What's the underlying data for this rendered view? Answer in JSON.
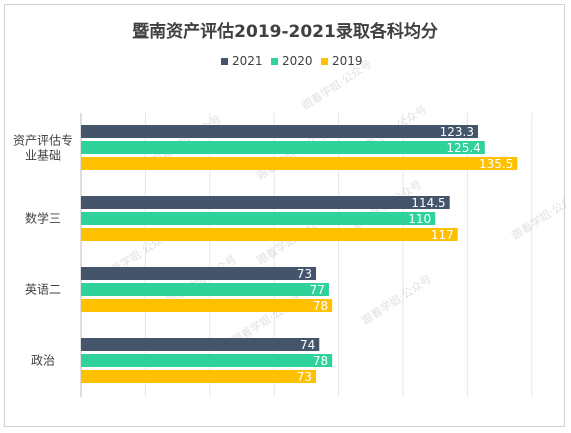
{
  "chart_data": {
    "type": "bar",
    "orientation": "horizontal",
    "title": "暨南资产评估2019-2021录取各科均分",
    "categories": [
      "资产评估专业基础",
      "数学三",
      "英语二",
      "政治"
    ],
    "series": [
      {
        "name": "2021",
        "color": "#44546a",
        "values": [
          123.3,
          114.5,
          73,
          74
        ]
      },
      {
        "name": "2020",
        "color": "#2fd39a",
        "values": [
          125.4,
          110,
          77,
          78
        ]
      },
      {
        "name": "2019",
        "color": "#ffc000",
        "values": [
          135.5,
          117,
          78,
          73
        ]
      }
    ],
    "xlim": [
      0,
      160
    ],
    "grid": true,
    "legend_position": "top"
  },
  "watermark_text": "跟着学姐·公众号"
}
